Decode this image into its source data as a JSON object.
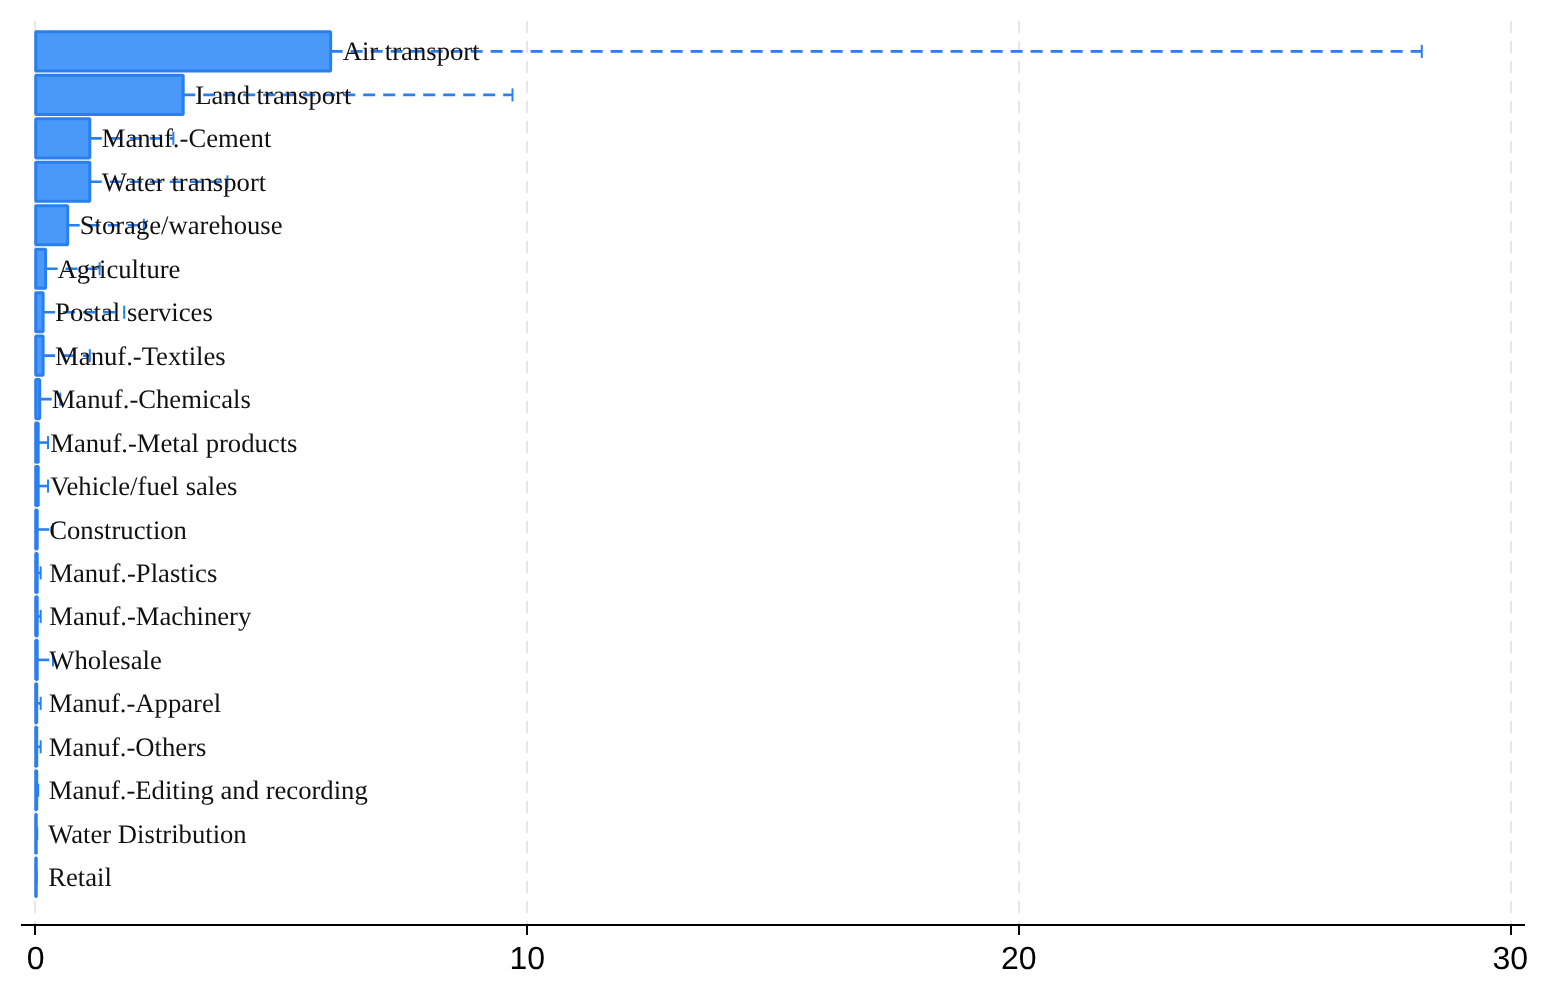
{
  "chart_data": {
    "type": "bar",
    "orientation": "horizontal",
    "categories": [
      "Air transport",
      "Land transport",
      "Manuf.-Cement",
      "Water transport",
      "Storage/warehouse",
      "Agriculture",
      "Postal services",
      "Manuf.-Textiles",
      "Manuf.-Chemicals",
      "Manuf.-Metal products",
      "Vehicle/fuel sales",
      "Construction",
      "Manuf.-Plastics",
      "Manuf.-Machinery",
      "Wholesale",
      "Manuf.-Apparel",
      "Manuf.-Others",
      "Manuf.-Editing and recording",
      "Water Distribution",
      "Retail"
    ],
    "values": [
      6.0,
      3.0,
      1.1,
      1.1,
      0.65,
      0.2,
      0.15,
      0.15,
      0.08,
      0.05,
      0.05,
      0.03,
      0.03,
      0.03,
      0.03,
      0.02,
      0.02,
      0.02,
      0.01,
      0.01
    ],
    "errors": [
      [
        6.0,
        28.2
      ],
      [
        3.0,
        9.7
      ],
      [
        1.1,
        2.8
      ],
      [
        1.1,
        3.9
      ],
      [
        0.65,
        2.2
      ],
      [
        0.2,
        1.3
      ],
      [
        0.15,
        1.8
      ],
      [
        0.15,
        1.1
      ],
      [
        0.08,
        0.5
      ],
      [
        0.05,
        0.25
      ],
      [
        0.05,
        0.25
      ],
      [
        0.03,
        0.35
      ],
      [
        0.03,
        0.1
      ],
      [
        0.03,
        0.1
      ],
      [
        0.03,
        0.35
      ],
      [
        0.02,
        0.1
      ],
      [
        0.02,
        0.1
      ],
      [
        0.02,
        0.05
      ],
      [
        0.01,
        0.03
      ],
      [
        0.01,
        0.02
      ]
    ],
    "color": "#4a98f7",
    "line_style": "dashed",
    "xlim": [
      -0.3,
      30.3
    ],
    "xticks": [
      0,
      10,
      20,
      30
    ],
    "grid": "x"
  }
}
